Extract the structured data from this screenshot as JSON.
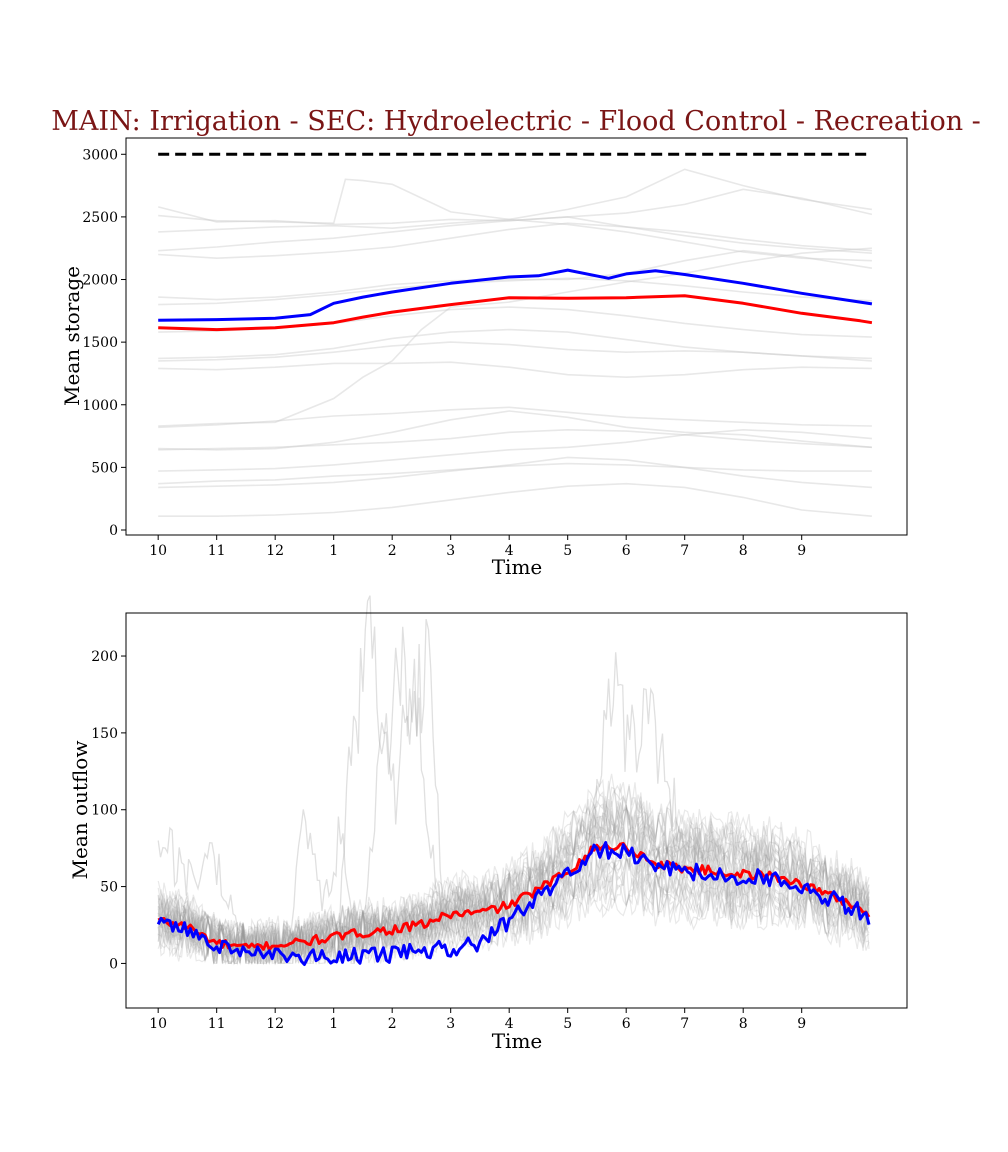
{
  "figure": {
    "title": "MAIN: Irrigation - SEC: Hydroelectric - Flood Control - Recreation -"
  },
  "chart_data": [
    {
      "type": "line",
      "id": "storage",
      "title": "",
      "xlabel": "Time",
      "ylabel": "Mean storage",
      "categories": [
        "10",
        "11",
        "12",
        "1",
        "2",
        "3",
        "4",
        "5",
        "6",
        "7",
        "8",
        "9"
      ],
      "xlim": [
        -0.55,
        12.8
      ],
      "ylim": [
        -40,
        3130
      ],
      "yticks": [
        0,
        500,
        1000,
        1500,
        2000,
        2500,
        3000
      ],
      "grid": false,
      "reference_line": {
        "y": 3000,
        "x_range": [
          0,
          12.2
        ],
        "color": "#000000",
        "style": "dashed"
      },
      "background_color": "#cccccc",
      "series": [
        {
          "color": "#ff0000",
          "x": [
            0,
            1,
            2,
            3,
            3.5,
            4,
            5,
            6,
            7,
            8,
            9,
            10,
            11,
            12,
            12.2
          ],
          "values": [
            1615,
            1600,
            1615,
            1655,
            1700,
            1740,
            1800,
            1855,
            1850,
            1855,
            1870,
            1810,
            1730,
            1670,
            1655
          ]
        },
        {
          "color": "#0000ff",
          "x": [
            0,
            1,
            2,
            2.6,
            3,
            3.5,
            4,
            5,
            6,
            6.5,
            7,
            7.7,
            8,
            8.5,
            9,
            10,
            11,
            12,
            12.2
          ],
          "values": [
            1675,
            1680,
            1690,
            1720,
            1810,
            1860,
            1900,
            1970,
            2020,
            2030,
            2075,
            2010,
            2045,
            2070,
            2040,
            1970,
            1890,
            1820,
            1805
          ]
        }
      ],
      "background_series": [
        [
          0,
          1,
          2,
          3,
          4,
          5,
          6,
          7,
          8,
          9,
          10,
          11,
          12.2,
          [
            2580,
            2460,
            2470,
            2440,
            2450,
            2480,
            2470,
            2500,
            2420,
            2350,
            2290,
            2250,
            2210
          ]
        ],
        [
          0,
          1,
          2,
          3,
          3.2,
          3.5,
          4,
          5,
          6,
          7,
          8,
          9,
          10,
          11,
          12.2,
          [
            2510,
            2470,
            2460,
            2450,
            2800,
            2790,
            2760,
            2540,
            2480,
            2560,
            2660,
            2880,
            2750,
            2640,
            2560
          ]
        ],
        [
          0,
          1,
          2,
          3,
          4,
          5,
          6,
          7,
          8,
          9,
          10,
          11,
          12.2,
          [
            2230,
            2260,
            2300,
            2330,
            2380,
            2430,
            2470,
            2500,
            2530,
            2600,
            2720,
            2650,
            2520
          ]
        ],
        [
          0,
          1,
          2,
          3,
          4,
          5,
          6,
          7,
          8,
          9,
          10,
          11,
          12.2,
          [
            2200,
            2170,
            2190,
            2220,
            2260,
            2330,
            2400,
            2450,
            2420,
            2380,
            2320,
            2270,
            2230
          ]
        ],
        [
          0,
          1,
          2,
          3,
          4,
          5,
          6,
          7,
          8,
          9,
          10,
          11,
          12.2,
          [
            2380,
            2400,
            2420,
            2430,
            2410,
            2450,
            2480,
            2440,
            2380,
            2300,
            2220,
            2170,
            2150
          ]
        ],
        [
          0,
          1,
          2,
          3,
          4,
          5,
          6,
          7,
          8,
          9,
          10,
          11,
          12.2,
          [
            1860,
            1840,
            1860,
            1900,
            1960,
            1990,
            2000,
            2000,
            2050,
            2150,
            2230,
            2180,
            2090
          ]
        ],
        [
          0,
          1,
          2,
          3,
          4,
          5,
          6,
          7,
          8,
          9,
          10,
          11,
          12.2,
          [
            1800,
            1810,
            1840,
            1880,
            1930,
            1970,
            1990,
            2010,
            1990,
            1950,
            1900,
            1860,
            1830
          ]
        ],
        [
          0,
          1,
          2,
          3,
          4,
          5,
          6,
          7,
          8,
          9,
          10,
          11,
          12.2,
          [
            1580,
            1590,
            1610,
            1650,
            1710,
            1760,
            1780,
            1760,
            1710,
            1650,
            1600,
            1560,
            1540
          ]
        ],
        [
          0,
          1,
          2,
          3,
          4,
          5,
          6,
          7,
          8,
          9,
          10,
          11,
          12.2,
          [
            1370,
            1380,
            1400,
            1450,
            1530,
            1580,
            1600,
            1580,
            1520,
            1460,
            1420,
            1390,
            1370
          ]
        ],
        [
          0,
          1,
          2,
          3,
          4,
          5,
          6,
          7,
          8,
          9,
          10,
          11,
          12.2,
          [
            1350,
            1360,
            1380,
            1420,
            1470,
            1500,
            1480,
            1440,
            1420,
            1430,
            1420,
            1390,
            1350
          ]
        ],
        [
          0,
          1,
          2,
          3,
          4,
          5,
          6,
          7,
          8,
          9,
          10,
          11,
          12.2,
          [
            1290,
            1280,
            1300,
            1330,
            1330,
            1340,
            1300,
            1240,
            1220,
            1240,
            1280,
            1300,
            1290
          ]
        ],
        [
          0,
          1,
          2,
          3,
          3.5,
          4,
          4.5,
          5,
          6,
          7,
          8,
          9,
          10,
          11,
          12.2,
          [
            830,
            850,
            860,
            1050,
            1220,
            1350,
            1600,
            1780,
            1820,
            1900,
            1980,
            2050,
            2140,
            2210,
            2250
          ]
        ],
        [
          0,
          1,
          2,
          3,
          4,
          5,
          6,
          7,
          8,
          9,
          10,
          11,
          12.2,
          [
            820,
            840,
            870,
            910,
            930,
            960,
            980,
            940,
            900,
            880,
            860,
            840,
            830
          ]
        ],
        [
          0,
          1,
          2,
          3,
          4,
          5,
          6,
          7,
          8,
          9,
          10,
          11,
          12.2,
          [
            650,
            640,
            650,
            700,
            780,
            880,
            950,
            900,
            820,
            780,
            760,
            710,
            660
          ]
        ],
        [
          0,
          1,
          2,
          3,
          4,
          5,
          6,
          7,
          8,
          9,
          10,
          11,
          12.2,
          [
            640,
            650,
            660,
            680,
            700,
            730,
            780,
            800,
            790,
            760,
            720,
            690,
            660
          ]
        ],
        [
          0,
          1,
          2,
          3,
          4,
          5,
          6,
          7,
          8,
          9,
          10,
          11,
          12.2,
          [
            470,
            480,
            490,
            520,
            560,
            600,
            640,
            660,
            700,
            760,
            800,
            780,
            730
          ]
        ],
        [
          0,
          1,
          2,
          3,
          4,
          5,
          6,
          7,
          8,
          9,
          10,
          11,
          12.2,
          [
            370,
            390,
            400,
            430,
            450,
            480,
            510,
            530,
            520,
            500,
            480,
            470,
            470
          ]
        ],
        [
          0,
          1,
          2,
          3,
          4,
          5,
          6,
          7,
          8,
          9,
          10,
          11,
          12.2,
          [
            340,
            350,
            360,
            380,
            420,
            470,
            520,
            580,
            560,
            500,
            430,
            380,
            340
          ]
        ],
        [
          0,
          1,
          2,
          3,
          4,
          5,
          6,
          7,
          8,
          9,
          10,
          11,
          12.2,
          [
            110,
            110,
            120,
            140,
            180,
            240,
            300,
            350,
            370,
            340,
            260,
            160,
            110
          ]
        ]
      ]
    },
    {
      "type": "line",
      "id": "outflow",
      "title": "",
      "xlabel": "Time",
      "ylabel": "Mean outflow",
      "categories": [
        "10",
        "11",
        "12",
        "1",
        "2",
        "3",
        "4",
        "5",
        "6",
        "7",
        "8",
        "9"
      ],
      "xlim": [
        -0.55,
        12.8
      ],
      "ylim": [
        -29,
        228
      ],
      "yticks": [
        0,
        50,
        100,
        150,
        200
      ],
      "grid": false,
      "background_color": "#999999",
      "background_count": 30,
      "series": [
        {
          "color": "#ff0000",
          "x": [
            0,
            0.5,
            1,
            1.5,
            2,
            2.5,
            3,
            3.5,
            4,
            4.5,
            5,
            5.5,
            6,
            6.5,
            7,
            7.5,
            8,
            8.5,
            9,
            9.5,
            10,
            10.5,
            11,
            11.5,
            12,
            12.2
          ],
          "values": [
            28,
            24,
            13,
            10,
            12,
            14,
            17,
            20,
            22,
            25,
            32,
            33,
            38,
            48,
            60,
            76,
            76,
            65,
            62,
            60,
            58,
            57,
            52,
            44,
            36,
            30
          ]
        },
        {
          "color": "#0000ff",
          "x": [
            0,
            0.5,
            1,
            1.5,
            2,
            2.5,
            3,
            3.5,
            4,
            4.5,
            5,
            5.5,
            6,
            6.5,
            7,
            7.5,
            8,
            8.5,
            9,
            9.5,
            10,
            10.5,
            11,
            11.5,
            12,
            12.2
          ],
          "values": [
            25,
            21,
            11,
            7,
            5,
            4,
            4,
            5,
            6,
            8,
            10,
            12,
            28,
            44,
            58,
            73,
            74,
            62,
            60,
            59,
            56,
            55,
            50,
            42,
            34,
            27
          ]
        }
      ],
      "spike_series": [
        {
          "x": [
            3.1,
            3.3,
            3.6,
            4.0,
            4.4,
            4.8
          ],
          "values": [
            30,
            165,
            215,
            120,
            180,
            40
          ]
        },
        {
          "x": [
            3.5,
            3.8,
            4.1,
            4.3,
            4.6,
            4.9
          ],
          "values": [
            20,
            140,
            210,
            205,
            215,
            30
          ]
        },
        {
          "x": [
            7.3,
            7.7,
            8.0,
            8.3,
            8.8,
            9.4
          ],
          "values": [
            60,
            195,
            150,
            175,
            110,
            70
          ]
        },
        {
          "x": [
            2.2,
            2.5,
            2.8,
            3.1,
            3.4
          ],
          "values": [
            5,
            110,
            40,
            90,
            20
          ]
        },
        {
          "x": [
            0,
            0.3,
            0.6,
            0.9,
            1.2,
            1.5
          ],
          "values": [
            100,
            70,
            55,
            80,
            45,
            15
          ]
        }
      ]
    }
  ]
}
